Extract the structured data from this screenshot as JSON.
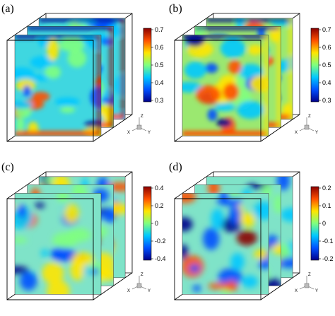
{
  "panels": [
    {
      "label": "(a)",
      "palette": "temperature",
      "colorbar": {
        "ticks": [
          "0.7",
          "0.6",
          "0.5",
          "0.4",
          "0.3"
        ]
      },
      "axes": {
        "z": "Z",
        "x": "X",
        "y": "Y"
      }
    },
    {
      "label": "(b)",
      "palette": "temperature",
      "colorbar": {
        "ticks": [
          "0.7",
          "0.6",
          "0.5",
          "0.4",
          "0.3"
        ]
      },
      "axes": {
        "z": "Z",
        "x": "X",
        "y": "Y"
      }
    },
    {
      "label": "(c)",
      "palette": "fluctuation",
      "colorbar": {
        "ticks": [
          "0.4",
          "0.2",
          "0",
          "-0.2",
          "-0.4"
        ]
      },
      "axes": {
        "z": "Z",
        "x": "X",
        "y": "Y"
      }
    },
    {
      "label": "(d)",
      "palette": "fluctuation",
      "colorbar": {
        "ticks": [
          "0.2",
          "0.1",
          "0",
          "-0.1",
          "-0.2"
        ]
      },
      "axes": {
        "z": "Z",
        "x": "X",
        "y": "Y"
      }
    }
  ],
  "colormap": [
    "#00008b",
    "#0050ff",
    "#00c8ff",
    "#7fff7f",
    "#ffe600",
    "#ff5000",
    "#8b0000"
  ]
}
